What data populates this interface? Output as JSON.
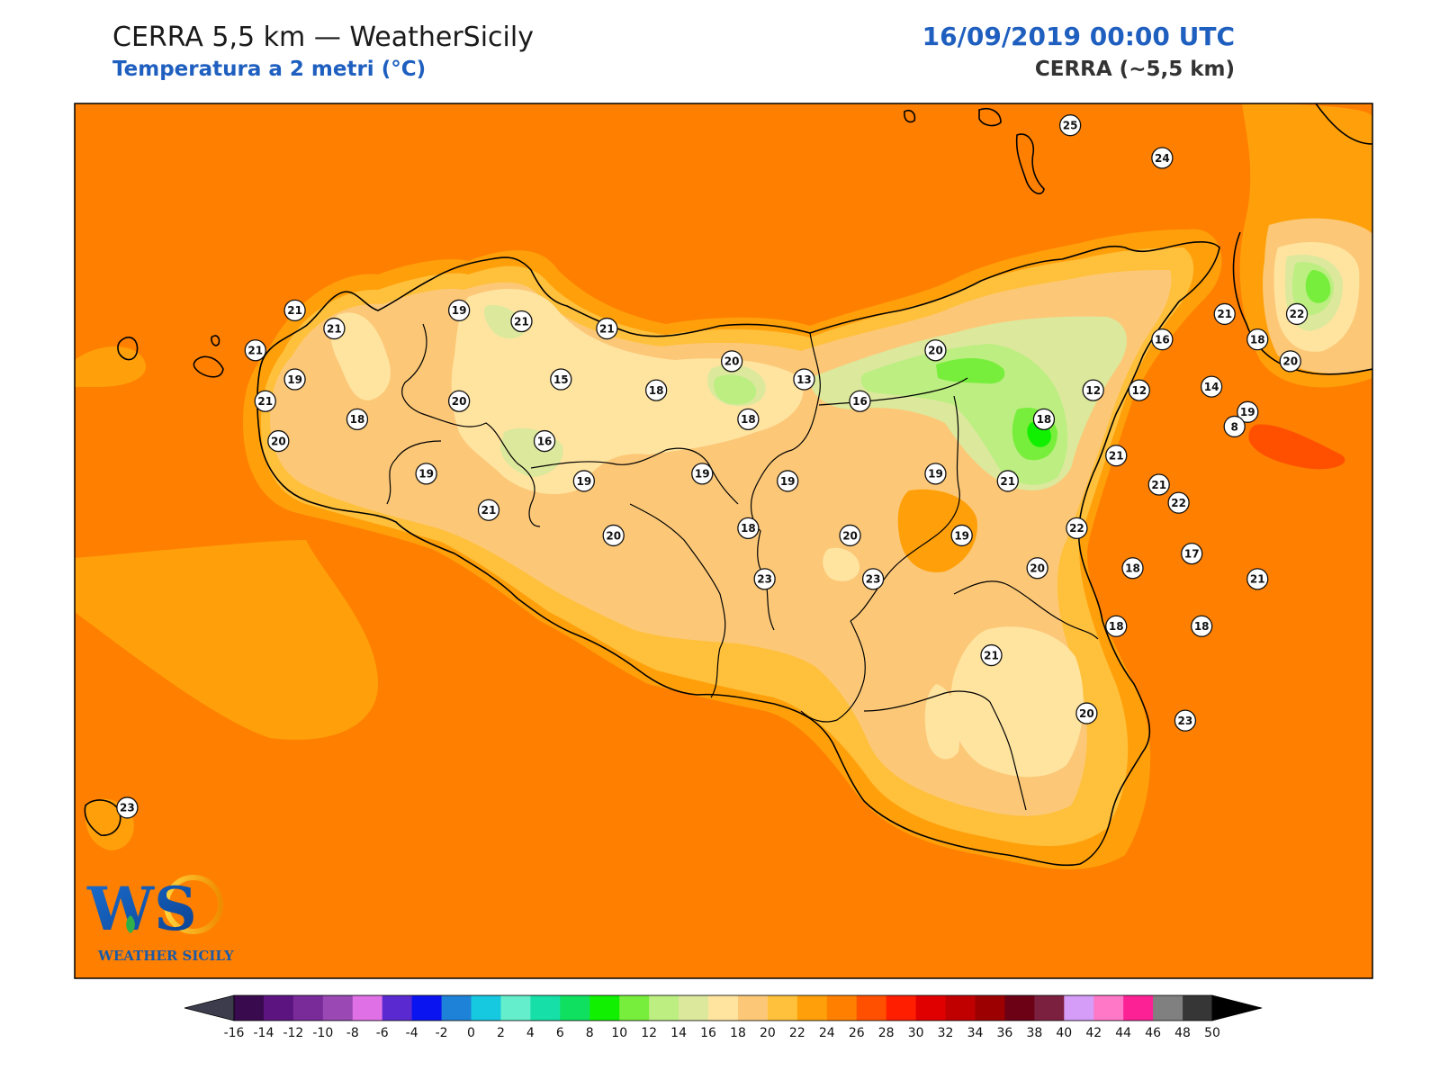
{
  "header": {
    "title": "CERRA 5,5 km — WeatherSicily",
    "subtitle": "Temperatura a 2 metri (°C)",
    "datetime": "16/09/2019 00:00 UTC",
    "model": "CERRA (~5,5 km)"
  },
  "logo": {
    "letters": "WS",
    "caption": "WEATHER SICILY"
  },
  "stations": [
    {
      "v": "25",
      "lon": 14.93,
      "lat": 38.8
    },
    {
      "v": "24",
      "lon": 15.21,
      "lat": 38.71
    },
    {
      "v": "21",
      "lon": 12.57,
      "lat": 38.29
    },
    {
      "v": "19",
      "lon": 13.07,
      "lat": 38.29
    },
    {
      "v": "21",
      "lon": 13.26,
      "lat": 38.26
    },
    {
      "v": "21",
      "lon": 12.69,
      "lat": 38.24
    },
    {
      "v": "21",
      "lon": 13.52,
      "lat": 38.24
    },
    {
      "v": "21",
      "lon": 12.45,
      "lat": 38.18
    },
    {
      "v": "19",
      "lon": 12.57,
      "lat": 38.1
    },
    {
      "v": "15",
      "lon": 13.38,
      "lat": 38.1
    },
    {
      "v": "20",
      "lon": 13.9,
      "lat": 38.15
    },
    {
      "v": "13",
      "lon": 14.12,
      "lat": 38.1
    },
    {
      "v": "20",
      "lon": 14.52,
      "lat": 38.18
    },
    {
      "v": "18",
      "lon": 13.67,
      "lat": 38.07
    },
    {
      "v": "21",
      "lon": 12.48,
      "lat": 38.04
    },
    {
      "v": "20",
      "lon": 13.07,
      "lat": 38.04
    },
    {
      "v": "16",
      "lon": 14.29,
      "lat": 38.04
    },
    {
      "v": "18",
      "lon": 12.76,
      "lat": 37.99
    },
    {
      "v": "18",
      "lon": 13.95,
      "lat": 37.99
    },
    {
      "v": "18",
      "lon": 14.85,
      "lat": 37.99
    },
    {
      "v": "20",
      "lon": 12.52,
      "lat": 37.93
    },
    {
      "v": "16",
      "lon": 13.33,
      "lat": 37.93
    },
    {
      "v": "19",
      "lon": 12.97,
      "lat": 37.84
    },
    {
      "v": "19",
      "lon": 13.45,
      "lat": 37.82
    },
    {
      "v": "19",
      "lon": 13.81,
      "lat": 37.84
    },
    {
      "v": "19",
      "lon": 14.07,
      "lat": 37.82
    },
    {
      "v": "19",
      "lon": 14.52,
      "lat": 37.84
    },
    {
      "v": "21",
      "lon": 14.74,
      "lat": 37.82
    },
    {
      "v": "21",
      "lon": 13.16,
      "lat": 37.74
    },
    {
      "v": "18",
      "lon": 13.95,
      "lat": 37.69
    },
    {
      "v": "20",
      "lon": 13.54,
      "lat": 37.67
    },
    {
      "v": "20",
      "lon": 14.26,
      "lat": 37.67
    },
    {
      "v": "19",
      "lon": 14.6,
      "lat": 37.67
    },
    {
      "v": "22",
      "lon": 14.95,
      "lat": 37.69
    },
    {
      "v": "23",
      "lon": 14.0,
      "lat": 37.55
    },
    {
      "v": "23",
      "lon": 14.33,
      "lat": 37.55
    },
    {
      "v": "20",
      "lon": 14.83,
      "lat": 37.58
    },
    {
      "v": "18",
      "lon": 15.12,
      "lat": 37.58
    },
    {
      "v": "17",
      "lon": 15.3,
      "lat": 37.62
    },
    {
      "v": "21",
      "lon": 15.5,
      "lat": 37.55
    },
    {
      "v": "18",
      "lon": 15.07,
      "lat": 37.42
    },
    {
      "v": "18",
      "lon": 15.33,
      "lat": 37.42
    },
    {
      "v": "21",
      "lon": 14.69,
      "lat": 37.34
    },
    {
      "v": "20",
      "lon": 14.98,
      "lat": 37.18
    },
    {
      "v": "23",
      "lon": 15.28,
      "lat": 37.16
    },
    {
      "v": "16",
      "lon": 15.21,
      "lat": 38.21
    },
    {
      "v": "18",
      "lon": 15.5,
      "lat": 38.21
    },
    {
      "v": "21",
      "lon": 15.4,
      "lat": 38.28
    },
    {
      "v": "22",
      "lon": 15.62,
      "lat": 38.28
    },
    {
      "v": "20",
      "lon": 15.6,
      "lat": 38.15
    },
    {
      "v": "14",
      "lon": 15.36,
      "lat": 38.08
    },
    {
      "v": "12",
      "lon": 15.0,
      "lat": 38.07
    },
    {
      "v": "12",
      "lon": 15.14,
      "lat": 38.07
    },
    {
      "v": "19",
      "lon": 15.47,
      "lat": 38.01
    },
    {
      "v": "8",
      "lon": 15.43,
      "lat": 37.97
    },
    {
      "v": "21",
      "lon": 15.07,
      "lat": 37.89
    },
    {
      "v": "22",
      "lon": 15.26,
      "lat": 37.76
    },
    {
      "v": "21",
      "lon": 15.2,
      "lat": 37.81
    },
    {
      "v": "23",
      "lon": 12.06,
      "lat": 36.92
    }
  ],
  "colorbar": {
    "unit": "°C",
    "min_color": "#3c3c4c",
    "max_color": "#000000",
    "bins": [
      {
        "label": "-16",
        "color": "#3a0a4e"
      },
      {
        "label": "-14",
        "color": "#5c1580"
      },
      {
        "label": "-12",
        "color": "#7a2b9a"
      },
      {
        "label": "-10",
        "color": "#9a48b4"
      },
      {
        "label": "-8",
        "color": "#e070e6"
      },
      {
        "label": "-6",
        "color": "#5a2ad0"
      },
      {
        "label": "-4",
        "color": "#0a14f0"
      },
      {
        "label": "-2",
        "color": "#1e82d8"
      },
      {
        "label": "0",
        "color": "#16c8e0"
      },
      {
        "label": "2",
        "color": "#64eecc"
      },
      {
        "label": "4",
        "color": "#16e0a8"
      },
      {
        "label": "6",
        "color": "#10e060"
      },
      {
        "label": "8",
        "color": "#10f000"
      },
      {
        "label": "10",
        "color": "#78ee3c"
      },
      {
        "label": "12",
        "color": "#bcee82"
      },
      {
        "label": "14",
        "color": "#dce89c"
      },
      {
        "label": "16",
        "color": "#ffe4a0"
      },
      {
        "label": "18",
        "color": "#fcc878"
      },
      {
        "label": "20",
        "color": "#ffc03c"
      },
      {
        "label": "22",
        "color": "#ffa00a"
      },
      {
        "label": "24",
        "color": "#ff8000"
      },
      {
        "label": "26",
        "color": "#ff5000"
      },
      {
        "label": "28",
        "color": "#ff1e00"
      },
      {
        "label": "30",
        "color": "#e00000"
      },
      {
        "label": "32",
        "color": "#c00000"
      },
      {
        "label": "34",
        "color": "#9c0000"
      },
      {
        "label": "36",
        "color": "#6c0014"
      },
      {
        "label": "38",
        "color": "#7c2040"
      },
      {
        "label": "40",
        "color": "#d59cf8"
      },
      {
        "label": "42",
        "color": "#ff78c8"
      },
      {
        "label": "44",
        "color": "#fc2296"
      },
      {
        "label": "46",
        "color": "#808080"
      },
      {
        "label": "48",
        "color": "#363636"
      }
    ],
    "last_label": "50"
  }
}
